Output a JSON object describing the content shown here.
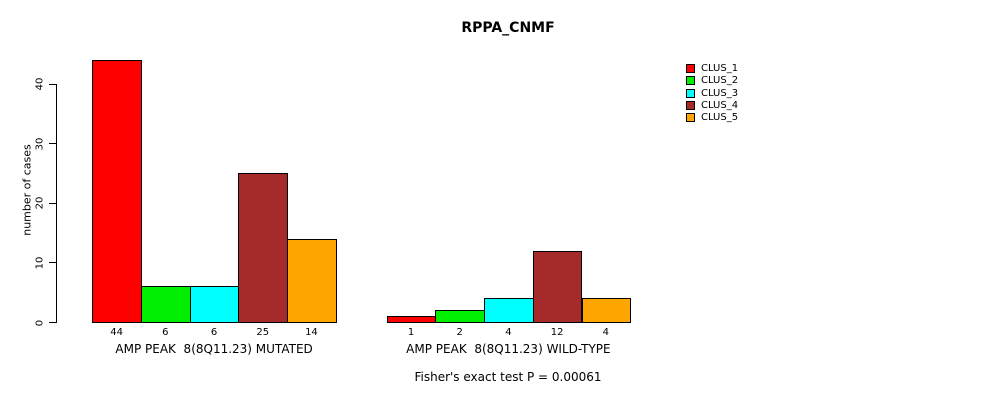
{
  "chart_data": {
    "type": "bar",
    "title": "RPPA_CNMF",
    "ylabel": "number of cases",
    "footnote": "Fisher's exact test P = 0.00061",
    "ylim": [
      0,
      40
    ],
    "yticks": [
      0,
      10,
      20,
      30,
      40
    ],
    "grid": false,
    "legend_position": "right",
    "categories": [
      "AMP PEAK  8(8Q11.23) MUTATED",
      "AMP PEAK  8(8Q11.23) WILD-TYPE"
    ],
    "series": [
      {
        "name": "CLUS_1",
        "color": "#FF0000",
        "values": [
          44,
          1
        ]
      },
      {
        "name": "CLUS_2",
        "color": "#00EE00",
        "values": [
          6,
          2
        ]
      },
      {
        "name": "CLUS_3",
        "color": "#00FFFF",
        "values": [
          6,
          4
        ]
      },
      {
        "name": "CLUS_4",
        "color": "#A52A2A",
        "values": [
          25,
          12
        ]
      },
      {
        "name": "CLUS_5",
        "color": "#FFA500",
        "values": [
          14,
          4
        ]
      }
    ]
  }
}
